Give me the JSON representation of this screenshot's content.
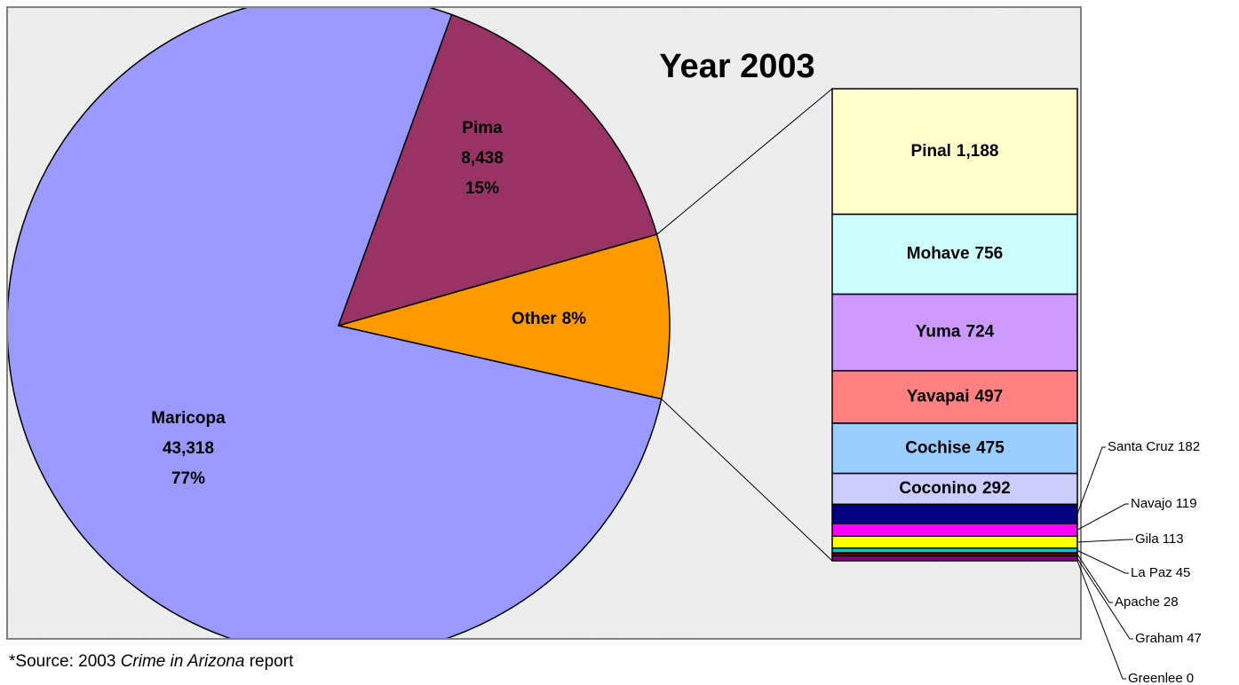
{
  "chart_data": {
    "type": "pie-of-bar",
    "title": "Year 2003",
    "pie": {
      "slices": [
        "Pima",
        "Other",
        "Maricopa"
      ],
      "values": [
        8438,
        null,
        43318
      ],
      "value_labels": [
        "8,438",
        null,
        "43,318"
      ],
      "percents": [
        15,
        8,
        77
      ],
      "percent_labels": [
        "15%",
        "8%",
        "77%"
      ],
      "colors": [
        "#993366",
        "#ff9900",
        "#9999ff"
      ]
    },
    "bar": {
      "categories": [
        "Pinal",
        "Mohave",
        "Yuma",
        "Yavapai",
        "Cochise",
        "Coconino",
        "Santa Cruz",
        "Navajo",
        "Gila",
        "La Paz",
        "Apache",
        "Graham",
        "Greenlee"
      ],
      "values": [
        1188,
        756,
        724,
        497,
        475,
        292,
        182,
        119,
        113,
        45,
        28,
        47,
        0
      ],
      "value_labels": [
        "1,188",
        "756",
        "724",
        "497",
        "475",
        "292",
        "182",
        "119",
        "113",
        "45",
        "28",
        "47",
        "0"
      ],
      "colors": [
        "#ffffcc",
        "#ccffff",
        "#cc99ff",
        "#ff8080",
        "#99ccff",
        "#ccccff",
        "#000080",
        "#ff00ff",
        "#ffff00",
        "#00cccc",
        "#800000",
        "#800080",
        "#000000"
      ]
    },
    "source": {
      "prefix": "*Source: 2003 ",
      "title": "Crime in Arizona",
      "suffix": " report"
    }
  }
}
